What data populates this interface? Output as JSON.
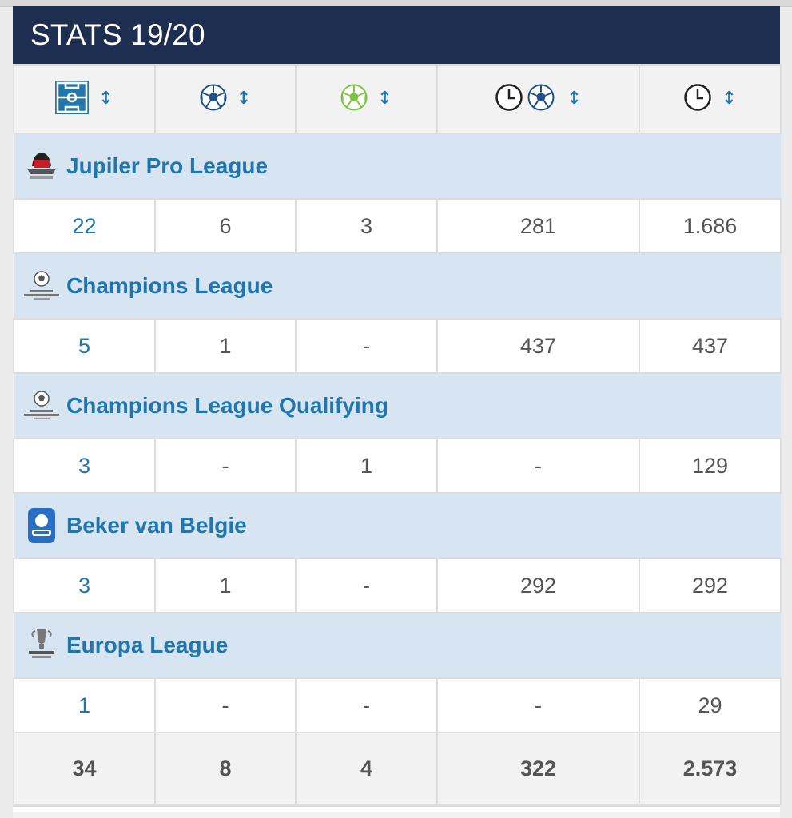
{
  "title": "STATS 19/20",
  "header": {
    "columns": [
      {
        "icon": "pitch-icon",
        "sort": "↕"
      },
      {
        "icon": "goal-ball-icon",
        "sort": "↕"
      },
      {
        "icon": "assist-ball-icon",
        "sort": "↕"
      },
      {
        "icon": "minutes-per-goal-icon",
        "sort": "↕"
      },
      {
        "icon": "minutes-played-icon",
        "sort": "↕"
      }
    ]
  },
  "competitions": [
    {
      "name": "Jupiler Pro League",
      "logo": "jupiler-pro-league-logo",
      "values": [
        "22",
        "6",
        "3",
        "281",
        "1.686"
      ]
    },
    {
      "name": "Champions League",
      "logo": "champions-league-logo",
      "values": [
        "5",
        "1",
        "-",
        "437",
        "437"
      ]
    },
    {
      "name": "Champions League Qualifying",
      "logo": "champions-league-qualifying-logo",
      "values": [
        "3",
        "-",
        "1",
        "-",
        "129"
      ]
    },
    {
      "name": "Beker van Belgie",
      "logo": "beker-van-belgie-logo",
      "values": [
        "3",
        "1",
        "-",
        "292",
        "292"
      ]
    },
    {
      "name": "Europa League",
      "logo": "europa-league-logo",
      "values": [
        "1",
        "-",
        "-",
        "-",
        "29"
      ]
    }
  ],
  "totals": [
    "34",
    "8",
    "4",
    "322",
    "2.573"
  ],
  "colors": {
    "title_bg": "#1d2e51",
    "accent": "#2176ae",
    "competition_bg": "#d6e5f1",
    "assist_green": "#7cc242"
  }
}
